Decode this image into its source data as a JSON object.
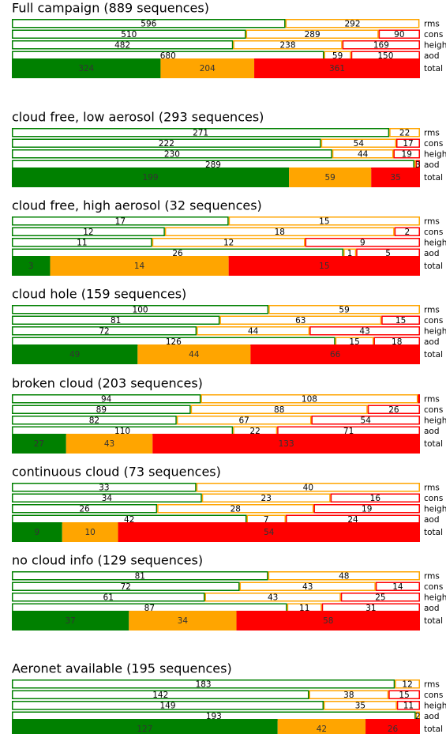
{
  "chart_data": {
    "type": "stacked-bar-panels",
    "colors": [
      "#008000",
      "#ffa500",
      "#ff0000"
    ],
    "panels": [
      {
        "title": "Full campaign (889 sequences)",
        "rows": [
          {
            "name": "rms",
            "values": [
              596,
              292,
              1
            ],
            "value_labels": [
              "596",
              "292",
              null
            ]
          },
          {
            "name": "cons",
            "values": [
              510,
              289,
              90
            ]
          },
          {
            "name": "height",
            "values": [
              482,
              238,
              169
            ]
          },
          {
            "name": "aod",
            "values": [
              680,
              59,
              150
            ]
          },
          {
            "name": "total",
            "values": [
              324,
              204,
              361
            ]
          }
        ]
      },
      {
        "title": "cloud free, low aerosol (293 sequences)",
        "rows": [
          {
            "name": "rms",
            "values": [
              271,
              22
            ]
          },
          {
            "name": "cons",
            "values": [
              222,
              54,
              17
            ]
          },
          {
            "name": "height",
            "values": [
              230,
              44,
              19
            ]
          },
          {
            "name": "aod",
            "values": [
              289,
              1,
              3
            ],
            "value_labels": [
              "289",
              null,
              "3"
            ]
          },
          {
            "name": "total",
            "values": [
              199,
              59,
              35
            ]
          }
        ]
      },
      {
        "title": "cloud free, high aerosol (32 sequences)",
        "rows": [
          {
            "name": "rms",
            "values": [
              17,
              15
            ]
          },
          {
            "name": "cons",
            "values": [
              12,
              18,
              2
            ]
          },
          {
            "name": "height",
            "values": [
              11,
              12,
              9
            ]
          },
          {
            "name": "aod",
            "values": [
              26,
              1,
              5
            ]
          },
          {
            "name": "total",
            "values": [
              3,
              14,
              15
            ]
          }
        ]
      },
      {
        "title": "cloud hole (159 sequences)",
        "rows": [
          {
            "name": "rms",
            "values": [
              100,
              59
            ]
          },
          {
            "name": "cons",
            "values": [
              81,
              63,
              15
            ]
          },
          {
            "name": "height",
            "values": [
              72,
              44,
              43
            ]
          },
          {
            "name": "aod",
            "values": [
              126,
              15,
              18
            ]
          },
          {
            "name": "total",
            "values": [
              49,
              44,
              66
            ]
          }
        ]
      },
      {
        "title": "broken cloud (203 sequences)",
        "rows": [
          {
            "name": "rms",
            "values": [
              94,
              108,
              1
            ],
            "value_labels": [
              "94",
              "108",
              null
            ]
          },
          {
            "name": "cons",
            "values": [
              89,
              88,
              26
            ]
          },
          {
            "name": "height",
            "values": [
              82,
              67,
              54
            ]
          },
          {
            "name": "aod",
            "values": [
              110,
              22,
              71
            ]
          },
          {
            "name": "total",
            "values": [
              27,
              43,
              133
            ]
          }
        ]
      },
      {
        "title": "continuous cloud (73 sequences)",
        "rows": [
          {
            "name": "rms",
            "values": [
              33,
              40
            ]
          },
          {
            "name": "cons",
            "values": [
              34,
              23,
              16
            ]
          },
          {
            "name": "height",
            "values": [
              26,
              28,
              19
            ]
          },
          {
            "name": "aod",
            "values": [
              42,
              7,
              24
            ]
          },
          {
            "name": "total",
            "values": [
              9,
              10,
              54
            ]
          }
        ]
      },
      {
        "title": "no cloud info (129 sequences)",
        "rows": [
          {
            "name": "rms",
            "values": [
              81,
              48
            ]
          },
          {
            "name": "cons",
            "values": [
              72,
              43,
              14
            ]
          },
          {
            "name": "height",
            "values": [
              61,
              43,
              25
            ]
          },
          {
            "name": "aod",
            "values": [
              87,
              11,
              31
            ]
          },
          {
            "name": "total",
            "values": [
              37,
              34,
              58
            ]
          }
        ]
      },
      {
        "title": "Aeronet available (195 sequences)",
        "rows": [
          {
            "name": "rms",
            "values": [
              183,
              12
            ]
          },
          {
            "name": "cons",
            "values": [
              142,
              38,
              15
            ]
          },
          {
            "name": "height",
            "values": [
              149,
              35,
              11
            ]
          },
          {
            "name": "aod",
            "values": [
              193,
              2
            ]
          },
          {
            "name": "total",
            "values": [
              127,
              42,
              26
            ]
          }
        ]
      }
    ]
  }
}
